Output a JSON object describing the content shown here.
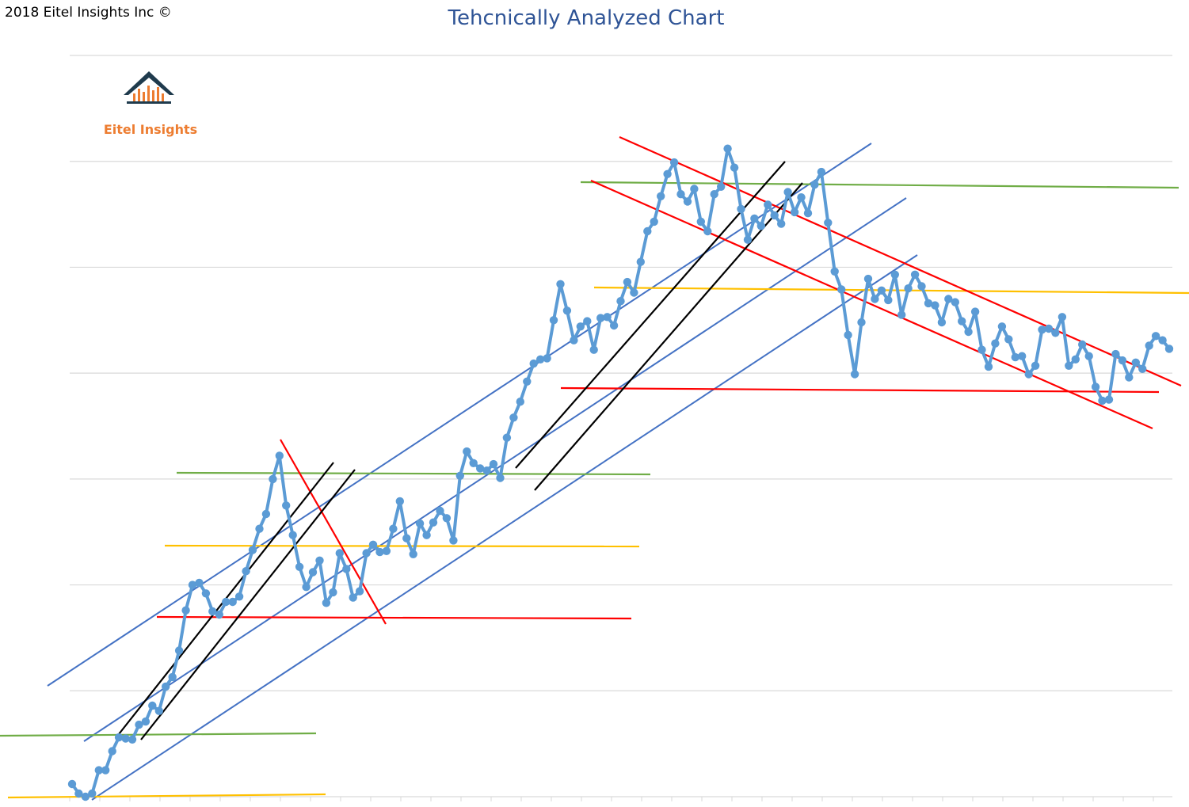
{
  "header": {
    "copyright": "2018 Eitel Insights Inc ©"
  },
  "logo": {
    "text": "Eitel Insights",
    "color": "#ed7d31",
    "roof_color": "#1f3b4d"
  },
  "colors": {
    "price": "#5b9bd5",
    "channel": "#4472c4",
    "resistance": "#ff0000",
    "support_green": "#70ad47",
    "support_yellow": "#ffc000",
    "trend_black": "#000000",
    "grid": "#d9d9d9"
  },
  "chart_data": {
    "type": "line",
    "title": "Tehcnically Analyzed Chart",
    "xlabel": "",
    "ylabel": "",
    "ylim": [
      0,
      700
    ],
    "grid": true,
    "series": [
      {
        "values": [
          12,
          3,
          0,
          3,
          25,
          25,
          43,
          56,
          55,
          54,
          68,
          71,
          86,
          81,
          104,
          113,
          138,
          176,
          200,
          202,
          192,
          175,
          172,
          184,
          184,
          189,
          213,
          233,
          253,
          267,
          300,
          322,
          275,
          247,
          217,
          198,
          212,
          223,
          183,
          193,
          230,
          215,
          188,
          194,
          230,
          238,
          231,
          232,
          253,
          279,
          244,
          229,
          258,
          247,
          259,
          270,
          263,
          242,
          303,
          326,
          315,
          310,
          308,
          314,
          301,
          339,
          358,
          373,
          392,
          409,
          413,
          414,
          450,
          484,
          459,
          431,
          444,
          449,
          422,
          452,
          453,
          445,
          468,
          486,
          476,
          505,
          534,
          543,
          567,
          588,
          599,
          569,
          562,
          574,
          543,
          534,
          569,
          576,
          612,
          594,
          555,
          526,
          546,
          539,
          559,
          549,
          541,
          571,
          552,
          566,
          551,
          578,
          590,
          542,
          496,
          479,
          436,
          399,
          448,
          489,
          470,
          478,
          469,
          493,
          455,
          480,
          493,
          482,
          466,
          464,
          448,
          470,
          467,
          449,
          439,
          458,
          422,
          406,
          428,
          444,
          432,
          415,
          416,
          399,
          407,
          441,
          442,
          438,
          453,
          407,
          413,
          427,
          416,
          387,
          374,
          375,
          418,
          412,
          396,
          410,
          404,
          426,
          435,
          431,
          423
        ]
      }
    ]
  }
}
